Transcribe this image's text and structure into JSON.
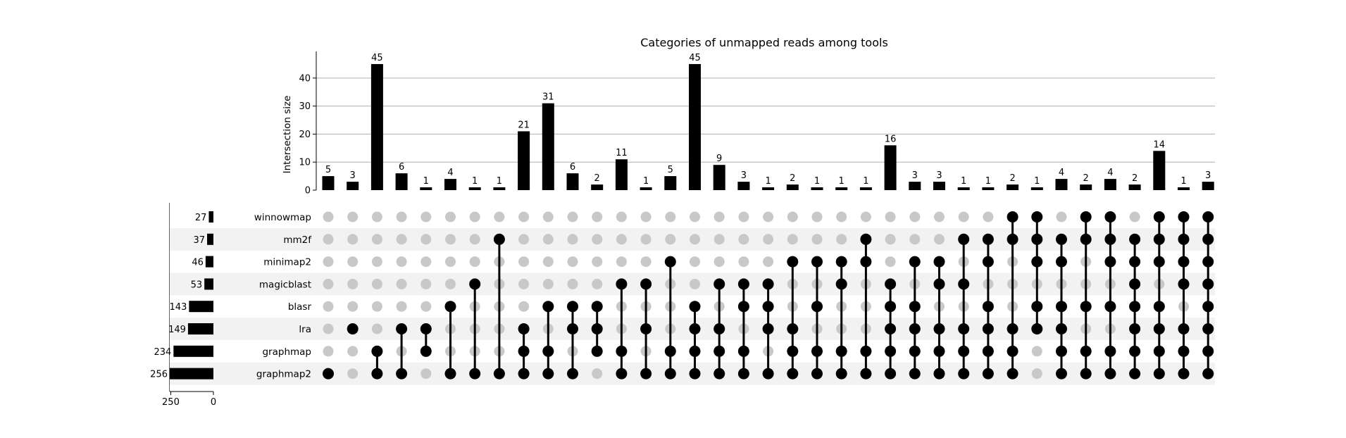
{
  "chart_data": {
    "type": "upset",
    "title": "Categories of unmapped reads among tools",
    "ylabel": "Intersection size",
    "ylim": [
      0,
      47
    ],
    "yticks": [
      0,
      10,
      20,
      30,
      40
    ],
    "set_size_ticks": [
      250,
      0
    ],
    "grid": true,
    "sets": [
      {
        "name": "winnowmap",
        "size": 27
      },
      {
        "name": "mm2f",
        "size": 37
      },
      {
        "name": "minimap2",
        "size": 46
      },
      {
        "name": "magicblast",
        "size": 53
      },
      {
        "name": "blasr",
        "size": 143
      },
      {
        "name": "lra",
        "size": 149
      },
      {
        "name": "graphmap",
        "size": 234
      },
      {
        "name": "graphmap2",
        "size": 256
      }
    ],
    "intersections": [
      {
        "size": 5,
        "members": [
          "graphmap2"
        ]
      },
      {
        "size": 3,
        "members": [
          "lra"
        ]
      },
      {
        "size": 45,
        "members": [
          "graphmap",
          "graphmap2"
        ]
      },
      {
        "size": 6,
        "members": [
          "lra",
          "graphmap2"
        ]
      },
      {
        "size": 1,
        "members": [
          "lra",
          "graphmap"
        ]
      },
      {
        "size": 4,
        "members": [
          "blasr",
          "graphmap2"
        ]
      },
      {
        "size": 1,
        "members": [
          "magicblast",
          "graphmap2"
        ]
      },
      {
        "size": 1,
        "members": [
          "mm2f",
          "graphmap2"
        ]
      },
      {
        "size": 21,
        "members": [
          "lra",
          "graphmap",
          "graphmap2"
        ]
      },
      {
        "size": 31,
        "members": [
          "blasr",
          "graphmap",
          "graphmap2"
        ]
      },
      {
        "size": 6,
        "members": [
          "blasr",
          "lra",
          "graphmap2"
        ]
      },
      {
        "size": 2,
        "members": [
          "blasr",
          "lra",
          "graphmap"
        ]
      },
      {
        "size": 11,
        "members": [
          "magicblast",
          "graphmap",
          "graphmap2"
        ]
      },
      {
        "size": 1,
        "members": [
          "magicblast",
          "lra",
          "graphmap2"
        ]
      },
      {
        "size": 5,
        "members": [
          "minimap2",
          "graphmap",
          "graphmap2"
        ]
      },
      {
        "size": 45,
        "members": [
          "blasr",
          "lra",
          "graphmap",
          "graphmap2"
        ]
      },
      {
        "size": 9,
        "members": [
          "magicblast",
          "lra",
          "graphmap",
          "graphmap2"
        ]
      },
      {
        "size": 3,
        "members": [
          "magicblast",
          "blasr",
          "graphmap",
          "graphmap2"
        ]
      },
      {
        "size": 1,
        "members": [
          "magicblast",
          "blasr",
          "lra",
          "graphmap2"
        ]
      },
      {
        "size": 2,
        "members": [
          "minimap2",
          "lra",
          "graphmap",
          "graphmap2"
        ]
      },
      {
        "size": 1,
        "members": [
          "minimap2",
          "blasr",
          "graphmap",
          "graphmap2"
        ]
      },
      {
        "size": 1,
        "members": [
          "minimap2",
          "magicblast",
          "graphmap",
          "graphmap2"
        ]
      },
      {
        "size": 1,
        "members": [
          "mm2f",
          "minimap2",
          "graphmap",
          "graphmap2"
        ]
      },
      {
        "size": 16,
        "members": [
          "magicblast",
          "blasr",
          "lra",
          "graphmap",
          "graphmap2"
        ]
      },
      {
        "size": 3,
        "members": [
          "minimap2",
          "blasr",
          "lra",
          "graphmap",
          "graphmap2"
        ]
      },
      {
        "size": 3,
        "members": [
          "minimap2",
          "magicblast",
          "lra",
          "graphmap",
          "graphmap2"
        ]
      },
      {
        "size": 1,
        "members": [
          "mm2f",
          "magicblast",
          "lra",
          "graphmap",
          "graphmap2"
        ]
      },
      {
        "size": 1,
        "members": [
          "mm2f",
          "minimap2",
          "blasr",
          "lra",
          "graphmap",
          "graphmap2"
        ]
      },
      {
        "size": 2,
        "members": [
          "winnowmap",
          "mm2f",
          "lra",
          "graphmap",
          "graphmap2"
        ]
      },
      {
        "size": 1,
        "members": [
          "winnowmap",
          "mm2f",
          "minimap2",
          "blasr",
          "lra"
        ]
      },
      {
        "size": 4,
        "members": [
          "mm2f",
          "minimap2",
          "blasr",
          "lra",
          "graphmap",
          "graphmap2"
        ]
      },
      {
        "size": 2,
        "members": [
          "winnowmap",
          "mm2f",
          "blasr",
          "graphmap",
          "graphmap2"
        ]
      },
      {
        "size": 4,
        "members": [
          "winnowmap",
          "mm2f",
          "minimap2",
          "blasr",
          "graphmap",
          "graphmap2"
        ]
      },
      {
        "size": 2,
        "members": [
          "mm2f",
          "minimap2",
          "magicblast",
          "blasr",
          "lra",
          "graphmap",
          "graphmap2"
        ]
      },
      {
        "size": 14,
        "members": [
          "winnowmap",
          "mm2f",
          "minimap2",
          "blasr",
          "lra",
          "graphmap",
          "graphmap2"
        ]
      },
      {
        "size": 1,
        "members": [
          "winnowmap",
          "mm2f",
          "minimap2",
          "magicblast",
          "lra",
          "graphmap",
          "graphmap2"
        ]
      },
      {
        "size": 3,
        "members": [
          "winnowmap",
          "mm2f",
          "minimap2",
          "magicblast",
          "blasr",
          "lra",
          "graphmap",
          "graphmap2"
        ]
      }
    ],
    "colors": {
      "active": "#000000",
      "inactive": "#c8c8c8",
      "stripe": "#f2f2f2",
      "grid": "#b0b0b0"
    }
  }
}
